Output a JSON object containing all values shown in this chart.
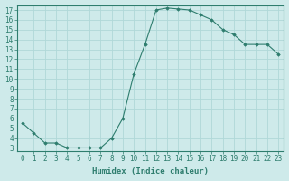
{
  "x": [
    0,
    1,
    2,
    3,
    4,
    5,
    6,
    7,
    8,
    9,
    10,
    11,
    12,
    13,
    14,
    15,
    16,
    17,
    18,
    19,
    20,
    21,
    22,
    23
  ],
  "y": [
    5.5,
    4.5,
    3.5,
    3.5,
    3.0,
    3.0,
    3.0,
    3.0,
    4.0,
    6.0,
    10.5,
    13.5,
    17.0,
    17.2,
    17.1,
    17.0,
    16.5,
    16.0,
    15.0,
    14.5,
    13.5,
    13.5,
    13.5,
    12.5
  ],
  "line_color": "#2e7d6e",
  "marker": "D",
  "marker_size": 1.8,
  "bg_color": "#ceeaea",
  "grid_color": "#b0d8d8",
  "xlabel": "Humidex (Indice chaleur)",
  "ylim_min": 3,
  "ylim_max": 17,
  "xlim_min": 0,
  "xlim_max": 23,
  "yticks": [
    3,
    4,
    5,
    6,
    7,
    8,
    9,
    10,
    11,
    12,
    13,
    14,
    15,
    16,
    17
  ],
  "xticks": [
    0,
    1,
    2,
    3,
    4,
    5,
    6,
    7,
    8,
    9,
    10,
    11,
    12,
    13,
    14,
    15,
    16,
    17,
    18,
    19,
    20,
    21,
    22,
    23
  ],
  "tick_fontsize": 5.5,
  "label_fontsize": 6.5
}
